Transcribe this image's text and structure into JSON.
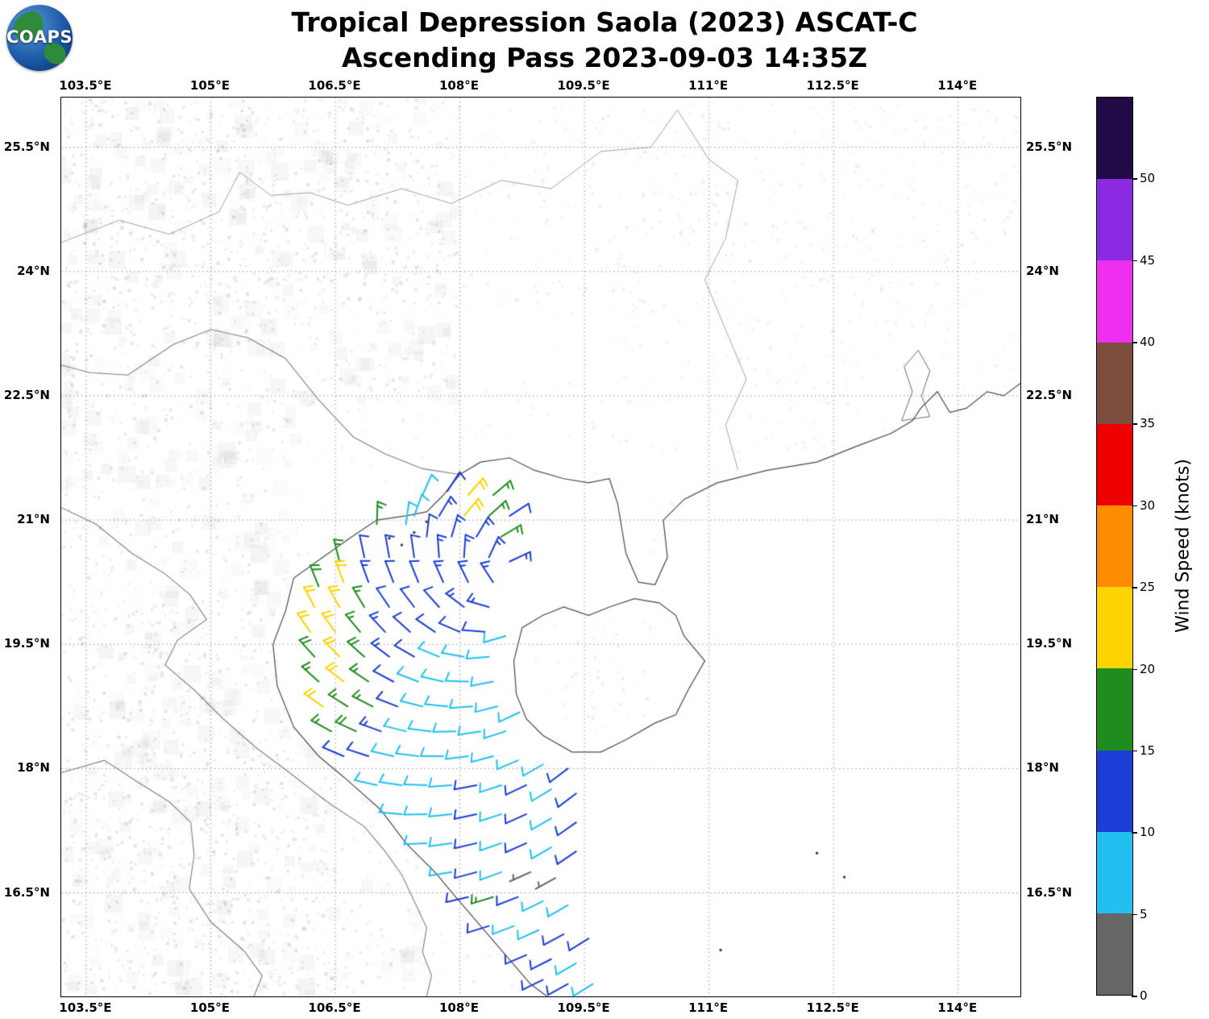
{
  "header": {
    "title_line1": "Tropical Depression Saola (2023) ASCAT-C",
    "title_line2": "Ascending Pass 2023-09-03 14:35Z",
    "logo_text": "COAPS"
  },
  "axes": {
    "lon_range": [
      103.2,
      114.75
    ],
    "lat_range": [
      15.25,
      26.1
    ],
    "lon_ticks": [
      {
        "label": "103.5°E",
        "value": 103.5
      },
      {
        "label": "105°E",
        "value": 105
      },
      {
        "label": "106.5°E",
        "value": 106.5
      },
      {
        "label": "108°E",
        "value": 108
      },
      {
        "label": "109.5°E",
        "value": 109.5
      },
      {
        "label": "111°E",
        "value": 111
      },
      {
        "label": "112.5°E",
        "value": 112.5
      },
      {
        "label": "114°E",
        "value": 114
      }
    ],
    "lat_ticks": [
      {
        "label": "25.5°N",
        "value": 25.5
      },
      {
        "label": "24°N",
        "value": 24
      },
      {
        "label": "22.5°N",
        "value": 22.5
      },
      {
        "label": "21°N",
        "value": 21
      },
      {
        "label": "19.5°N",
        "value": 19.5
      },
      {
        "label": "18°N",
        "value": 18
      },
      {
        "label": "16.5°N",
        "value": 16.5
      }
    ]
  },
  "colorbar": {
    "label": "Wind Speed (knots)",
    "ticks": [
      0,
      5,
      10,
      15,
      20,
      25,
      30,
      35,
      40,
      45,
      50
    ],
    "scale_max": 55,
    "segments": [
      {
        "from": 0,
        "to": 5,
        "color": "#666666"
      },
      {
        "from": 5,
        "to": 10,
        "color": "#22c0f0"
      },
      {
        "from": 10,
        "to": 15,
        "color": "#1c3ed6"
      },
      {
        "from": 15,
        "to": 20,
        "color": "#1e8c1e"
      },
      {
        "from": 20,
        "to": 25,
        "color": "#fdd300"
      },
      {
        "from": 25,
        "to": 30,
        "color": "#ff8c00"
      },
      {
        "from": 30,
        "to": 35,
        "color": "#ee0000"
      },
      {
        "from": 35,
        "to": 40,
        "color": "#7d4e3b"
      },
      {
        "from": 40,
        "to": 45,
        "color": "#ef2fef"
      },
      {
        "from": 45,
        "to": 50,
        "color": "#8a2be2"
      },
      {
        "from": 50,
        "to": 55,
        "color": "#220a46"
      }
    ]
  },
  "chart_data": {
    "type": "wind_barbs_map",
    "title": "Tropical Depression Saola (2023) ASCAT-C — Ascending Pass 2023-09-03 14:35Z",
    "wind_speed_units": "knots",
    "color_by": "wind_speed_kt (see colorbar.segments)",
    "barb_fields": [
      "lon_deg_e",
      "lat_deg_n",
      "wind_from_direction_deg",
      "wind_speed_kt"
    ],
    "barbs": [
      [
        107.55,
        21.3,
        24,
        8
      ],
      [
        107.85,
        21.35,
        33,
        12
      ],
      [
        108.1,
        21.3,
        41,
        21
      ],
      [
        108.4,
        21.3,
        50,
        16
      ],
      [
        107.45,
        21.05,
        20,
        9
      ],
      [
        107.75,
        21.05,
        31,
        13
      ],
      [
        108.05,
        21.05,
        40,
        22
      ],
      [
        108.35,
        21.05,
        48,
        17
      ],
      [
        108.6,
        21.05,
        57,
        12
      ],
      [
        107.0,
        20.95,
        2,
        16
      ],
      [
        107.35,
        20.95,
        8,
        9
      ],
      [
        107.6,
        20.8,
        7,
        11
      ],
      [
        107.9,
        20.8,
        16,
        13
      ],
      [
        108.2,
        20.8,
        31,
        14
      ],
      [
        108.5,
        20.8,
        59,
        17
      ],
      [
        106.55,
        20.5,
        346,
        16
      ],
      [
        106.85,
        20.55,
        348,
        12
      ],
      [
        107.15,
        20.55,
        350,
        12
      ],
      [
        107.45,
        20.55,
        352,
        12
      ],
      [
        107.75,
        20.55,
        356,
        13
      ],
      [
        108.05,
        20.55,
        4,
        13
      ],
      [
        108.35,
        20.55,
        25,
        14
      ],
      [
        108.6,
        20.5,
        65,
        13
      ],
      [
        106.3,
        20.2,
        338,
        19
      ],
      [
        106.6,
        20.25,
        339,
        21
      ],
      [
        106.9,
        20.25,
        340,
        13
      ],
      [
        107.2,
        20.25,
        339,
        12
      ],
      [
        107.5,
        20.25,
        338,
        12
      ],
      [
        107.8,
        20.25,
        336,
        13
      ],
      [
        108.1,
        20.25,
        334,
        13
      ],
      [
        108.4,
        20.25,
        327,
        14
      ],
      [
        106.25,
        19.95,
        332,
        21
      ],
      [
        106.55,
        19.95,
        331,
        20
      ],
      [
        106.85,
        19.95,
        329,
        16
      ],
      [
        107.15,
        19.95,
        326,
        12
      ],
      [
        107.45,
        19.95,
        323,
        12
      ],
      [
        107.75,
        19.95,
        318,
        12
      ],
      [
        108.05,
        19.95,
        307,
        13
      ],
      [
        108.35,
        19.95,
        286,
        13
      ],
      [
        106.2,
        19.65,
        325,
        20
      ],
      [
        106.5,
        19.65,
        324,
        21
      ],
      [
        106.8,
        19.65,
        320,
        17
      ],
      [
        107.1,
        19.65,
        317,
        13
      ],
      [
        107.4,
        19.65,
        312,
        12
      ],
      [
        107.7,
        19.65,
        304,
        12
      ],
      [
        108.0,
        19.65,
        293,
        12
      ],
      [
        108.3,
        19.65,
        275,
        12
      ],
      [
        108.55,
        19.6,
        254,
        8
      ],
      [
        106.25,
        19.35,
        318,
        18
      ],
      [
        106.55,
        19.35,
        316,
        21
      ],
      [
        106.85,
        19.35,
        312,
        19
      ],
      [
        107.15,
        19.35,
        307,
        13
      ],
      [
        107.45,
        19.35,
        300,
        12
      ],
      [
        107.75,
        19.35,
        292,
        9
      ],
      [
        108.05,
        19.35,
        280,
        9
      ],
      [
        108.35,
        19.35,
        265,
        8
      ],
      [
        106.3,
        19.05,
        312,
        17
      ],
      [
        106.6,
        19.05,
        308,
        20
      ],
      [
        106.9,
        19.05,
        304,
        16
      ],
      [
        107.2,
        19.05,
        298,
        12
      ],
      [
        107.5,
        19.05,
        291,
        9
      ],
      [
        107.8,
        19.05,
        283,
        8
      ],
      [
        108.1,
        19.05,
        272,
        8
      ],
      [
        108.4,
        19.05,
        259,
        8
      ],
      [
        106.35,
        18.75,
        305,
        20
      ],
      [
        106.65,
        18.75,
        302,
        17
      ],
      [
        106.95,
        18.75,
        297,
        16
      ],
      [
        107.25,
        18.75,
        291,
        12
      ],
      [
        107.55,
        18.75,
        284,
        9
      ],
      [
        107.85,
        18.75,
        276,
        8
      ],
      [
        108.15,
        18.75,
        266,
        8
      ],
      [
        108.45,
        18.75,
        256,
        8
      ],
      [
        108.72,
        18.68,
        245,
        9
      ],
      [
        106.45,
        18.45,
        299,
        17
      ],
      [
        106.75,
        18.45,
        295,
        18
      ],
      [
        107.05,
        18.45,
        290,
        13
      ],
      [
        107.35,
        18.45,
        284,
        9
      ],
      [
        107.65,
        18.45,
        277,
        8
      ],
      [
        107.95,
        18.45,
        269,
        8
      ],
      [
        108.25,
        18.45,
        261,
        8
      ],
      [
        108.55,
        18.45,
        252,
        8
      ],
      [
        106.6,
        18.15,
        293,
        12
      ],
      [
        106.9,
        18.15,
        288,
        12
      ],
      [
        107.2,
        18.15,
        283,
        9
      ],
      [
        107.5,
        18.15,
        277,
        8
      ],
      [
        107.8,
        18.15,
        270,
        8
      ],
      [
        108.1,
        18.15,
        263,
        8
      ],
      [
        108.4,
        18.15,
        255,
        8
      ],
      [
        108.7,
        18.1,
        247,
        9
      ],
      [
        109.0,
        18.05,
        240,
        9
      ],
      [
        109.3,
        18.0,
        233,
        12
      ],
      [
        107.0,
        17.8,
        283,
        9
      ],
      [
        107.3,
        17.8,
        278,
        8
      ],
      [
        107.6,
        17.8,
        272,
        8
      ],
      [
        107.9,
        17.8,
        266,
        8
      ],
      [
        108.2,
        17.8,
        259,
        12
      ],
      [
        108.5,
        17.8,
        252,
        8
      ],
      [
        108.8,
        17.8,
        245,
        12
      ],
      [
        109.1,
        17.75,
        239,
        9
      ],
      [
        109.4,
        17.7,
        233,
        12
      ],
      [
        107.3,
        17.45,
        275,
        8
      ],
      [
        107.6,
        17.45,
        269,
        8
      ],
      [
        107.9,
        17.45,
        264,
        8
      ],
      [
        108.2,
        17.45,
        258,
        12
      ],
      [
        108.5,
        17.45,
        252,
        8
      ],
      [
        108.8,
        17.45,
        246,
        12
      ],
      [
        109.1,
        17.4,
        240,
        8
      ],
      [
        109.4,
        17.35,
        235,
        12
      ],
      [
        107.6,
        17.1,
        267,
        8
      ],
      [
        107.9,
        17.1,
        262,
        8
      ],
      [
        108.2,
        17.1,
        257,
        12
      ],
      [
        108.5,
        17.1,
        251,
        8
      ],
      [
        108.8,
        17.1,
        246,
        12
      ],
      [
        109.1,
        17.05,
        240,
        8
      ],
      [
        109.4,
        17.0,
        236,
        12
      ],
      [
        107.9,
        16.75,
        261,
        8
      ],
      [
        108.2,
        16.75,
        255,
        12
      ],
      [
        108.5,
        16.75,
        250,
        8
      ],
      [
        108.85,
        16.75,
        246,
        3
      ],
      [
        109.15,
        16.68,
        241,
        4
      ],
      [
        108.1,
        16.45,
        257,
        12
      ],
      [
        108.4,
        16.45,
        253,
        16
      ],
      [
        108.7,
        16.45,
        249,
        12
      ],
      [
        109.0,
        16.4,
        244,
        8
      ],
      [
        109.3,
        16.35,
        240,
        8
      ],
      [
        108.35,
        16.1,
        253,
        12
      ],
      [
        108.65,
        16.1,
        249,
        8
      ],
      [
        108.95,
        16.05,
        246,
        8
      ],
      [
        109.25,
        16.0,
        242,
        12
      ],
      [
        109.55,
        15.95,
        238,
        12
      ],
      [
        108.8,
        15.75,
        247,
        12
      ],
      [
        109.1,
        15.7,
        243,
        12
      ],
      [
        109.4,
        15.65,
        240,
        8
      ],
      [
        109.0,
        15.45,
        244,
        12
      ],
      [
        109.3,
        15.4,
        241,
        12
      ],
      [
        109.6,
        15.4,
        238,
        8
      ]
    ]
  }
}
